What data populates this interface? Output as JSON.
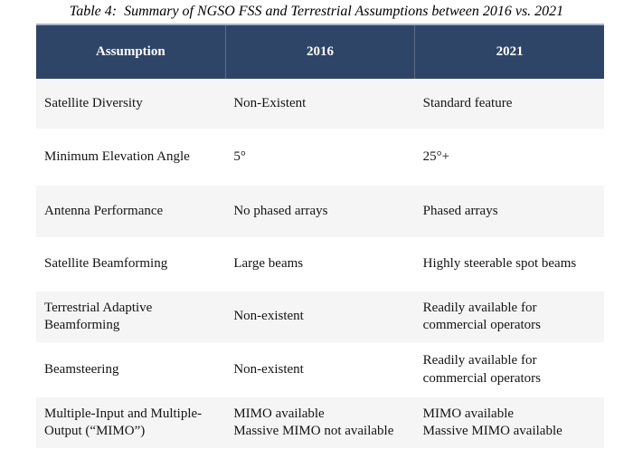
{
  "caption": "Table 4:  Summary of NGSO FSS and Terrestrial Assumptions between 2016 vs. 2021",
  "colors": {
    "header_bg": "#2F4568",
    "header_text": "#FFFFFF",
    "stripe_bg": "#F5F5F5",
    "body_text": "#141414",
    "header_top_border": "#A9B2CA"
  },
  "table": {
    "columns": [
      "Assumption",
      "2016",
      "2021"
    ],
    "rows": [
      {
        "assumption": "Satellite Diversity",
        "v2016": "Non-Existent",
        "v2021": "Standard feature"
      },
      {
        "assumption": "Minimum Elevation Angle",
        "v2016": "5°",
        "v2021": "25°+"
      },
      {
        "assumption": "Antenna Performance",
        "v2016": "No phased arrays",
        "v2021": "Phased arrays"
      },
      {
        "assumption": "Satellite Beamforming",
        "v2016": "Large beams",
        "v2021": "Highly steerable spot beams"
      },
      {
        "assumption": "Terrestrial Adaptive\nBeamforming",
        "v2016": "Non-existent",
        "v2021": "Readily available for\ncommercial operators"
      },
      {
        "assumption": "Beamsteering",
        "v2016": "Non-existent",
        "v2021": "Readily available for\ncommercial operators"
      },
      {
        "assumption": "Multiple-Input and Multiple-\nOutput (“MIMO”)",
        "v2016": "MIMO available\nMassive MIMO not available",
        "v2021": "MIMO available\nMassive MIMO available"
      }
    ]
  }
}
